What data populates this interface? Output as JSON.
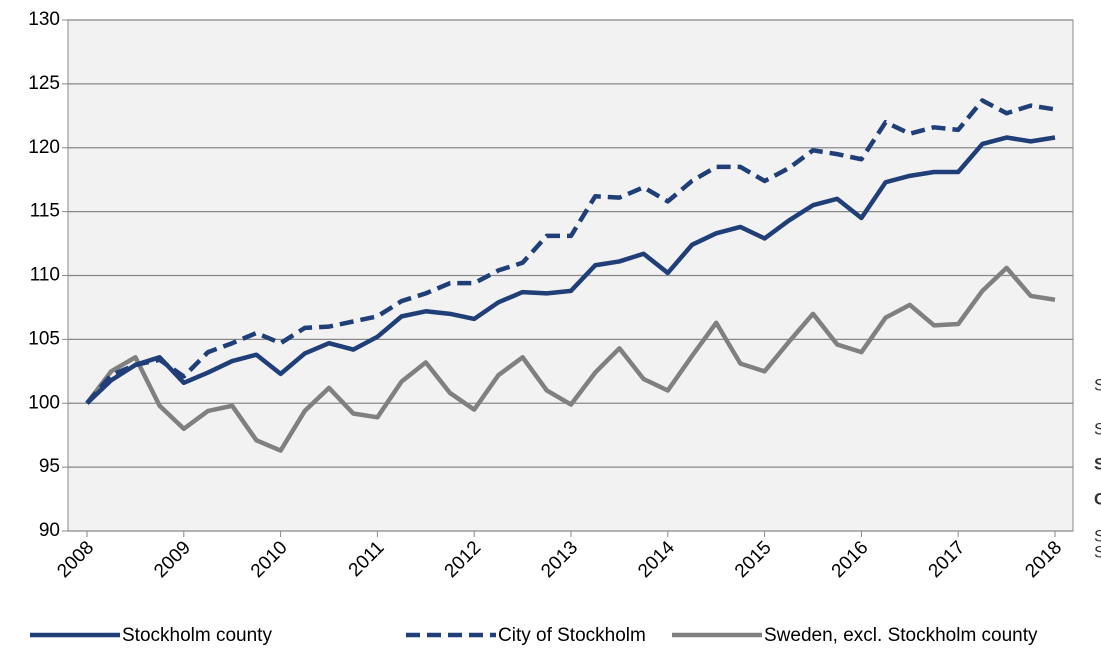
{
  "chart_data": {
    "type": "line",
    "categories": [
      "2008",
      null,
      null,
      null,
      "2009",
      null,
      null,
      null,
      "2010",
      null,
      null,
      null,
      "2011",
      null,
      null,
      null,
      "2012",
      null,
      null,
      null,
      "2013",
      null,
      null,
      null,
      "2014",
      null,
      null,
      null,
      "2015",
      null,
      null,
      null,
      "2016",
      null,
      null,
      null,
      "2017",
      null,
      null,
      null,
      "2018"
    ],
    "series": [
      {
        "name": "Stockholm county",
        "color": "#203f78",
        "dash": false,
        "values": [
          100,
          101.8,
          103,
          103.6,
          101.6,
          102.4,
          103.3,
          103.8,
          102.3,
          103.9,
          104.7,
          104.2,
          105.2,
          106.8,
          107.2,
          107,
          106.6,
          107.9,
          108.7,
          108.6,
          108.8,
          110.8,
          111.1,
          111.7,
          110.2,
          112.4,
          113.3,
          113.8,
          112.9,
          114.3,
          115.5,
          116,
          114.5,
          117.3,
          117.8,
          118.1,
          118.1,
          120.3,
          120.8,
          120.5,
          120.8
        ]
      },
      {
        "name": "City of Stockholm",
        "color": "#203f78",
        "dash": true,
        "values": [
          100,
          102.2,
          103,
          103.4,
          102.1,
          104,
          104.7,
          105.5,
          104.7,
          105.9,
          106,
          106.4,
          106.8,
          108,
          108.6,
          109.4,
          109.4,
          110.4,
          111,
          113.1,
          113.1,
          116.2,
          116.1,
          116.9,
          115.8,
          117.4,
          118.5,
          118.5,
          117.4,
          118.4,
          119.8,
          119.5,
          119.1,
          122,
          121.1,
          121.6,
          121.4,
          123.7,
          122.7,
          123.3,
          123
        ]
      },
      {
        "name": "Sweden, excl. Stockholm county",
        "color": "#808080",
        "dash": false,
        "values": [
          100,
          102.5,
          103.6,
          99.8,
          98,
          99.4,
          99.8,
          97.1,
          96.3,
          99.4,
          101.2,
          99.2,
          98.9,
          101.7,
          103.2,
          100.8,
          99.5,
          102.2,
          103.6,
          101,
          99.9,
          102.4,
          104.3,
          101.9,
          101,
          103.7,
          106.3,
          103.1,
          102.5,
          104.8,
          107,
          104.6,
          104,
          106.7,
          107.7,
          106.1,
          106.2,
          108.8,
          110.6,
          108.4,
          108.1
        ]
      }
    ],
    "ylim": [
      90,
      130
    ],
    "yticks": [
      90,
      95,
      100,
      105,
      110,
      115,
      120,
      125,
      130
    ],
    "grid": true,
    "legend": "bottom",
    "side_text": [
      "S",
      "S",
      "S",
      "C",
      "S",
      "S"
    ]
  }
}
